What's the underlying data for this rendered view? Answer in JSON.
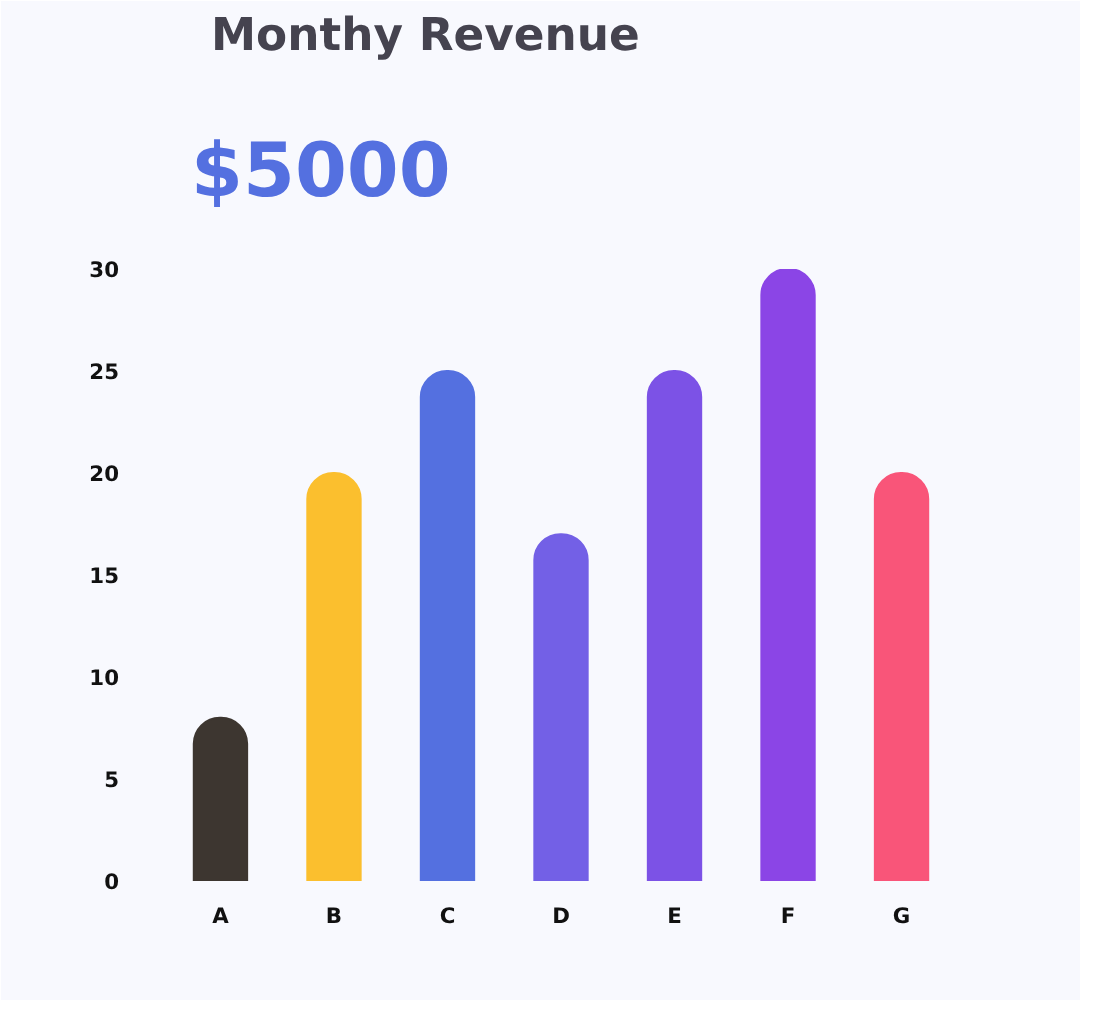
{
  "chart_data": {
    "type": "bar",
    "title": "Monthy Revenue",
    "subtitle": "$5000",
    "categories": [
      "A",
      "B",
      "C",
      "D",
      "E",
      "F",
      "G"
    ],
    "values": [
      8,
      20,
      25,
      17,
      25,
      30,
      20
    ],
    "colors": [
      "#3d3630",
      "#fbbf2e",
      "#5470e0",
      "#7360e6",
      "#7c52e6",
      "#8b45e6",
      "#f95579"
    ],
    "ylim": [
      0,
      30
    ],
    "yticks": [
      0,
      5,
      10,
      15,
      20,
      25,
      30
    ],
    "grid": false
  }
}
